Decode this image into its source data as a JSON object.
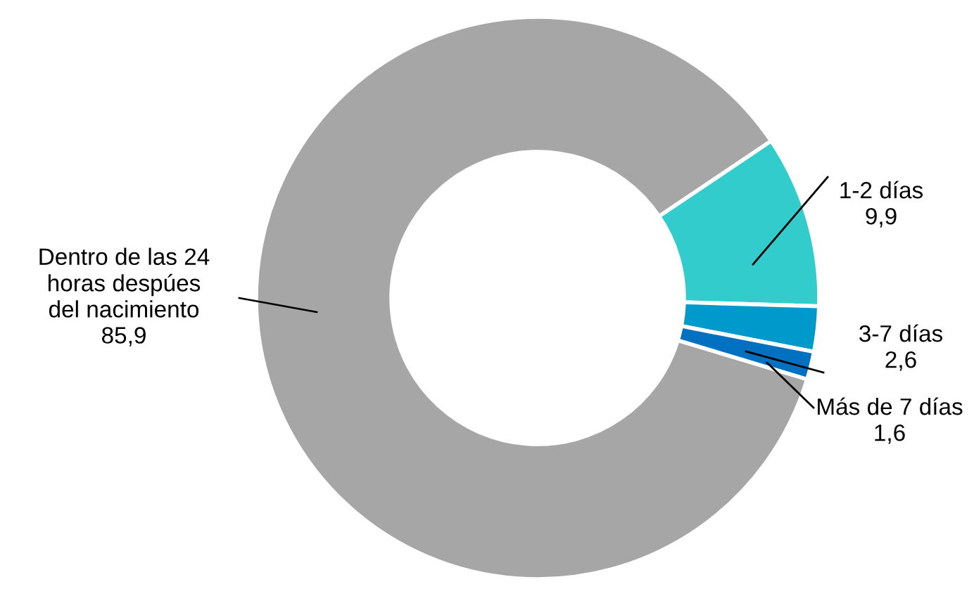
{
  "chart_data": {
    "type": "donut",
    "categories": [
      "Dentro de las 24\nhoras despúes\ndel nacimiento",
      "1-2 días",
      "3-7 días",
      "Más de 7 días"
    ],
    "values": [
      85.9,
      9.9,
      2.6,
      1.6
    ],
    "value_labels": [
      "85,9",
      "9,9",
      "2,6",
      "1,6"
    ],
    "colors": [
      "#a6a6a6",
      "#33cccc",
      "#0099cc",
      "#0070c0"
    ]
  }
}
